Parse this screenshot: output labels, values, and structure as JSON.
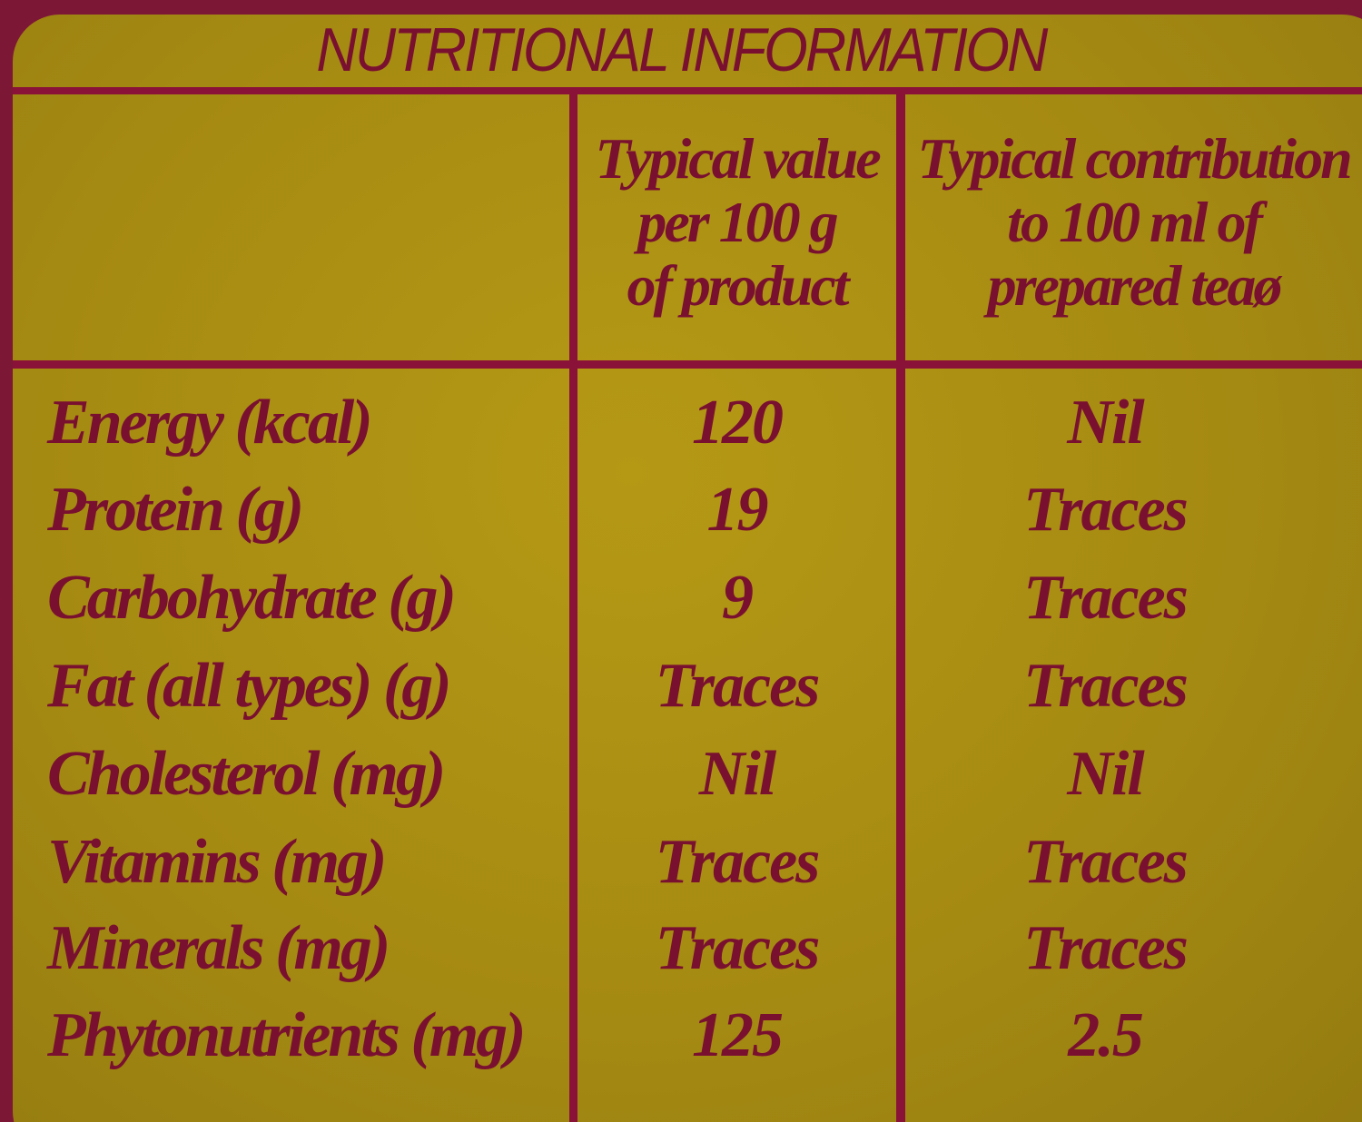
{
  "title": "NUTRITIONAL INFORMATION",
  "columns": {
    "col1": [
      "Typical value",
      "per 100 g",
      "of product"
    ],
    "col2": [
      "Typical contribution",
      "to 100 ml of",
      "prepared teaø"
    ]
  },
  "rows": [
    {
      "label": "Energy (kcal)",
      "per100g": "120",
      "per100ml": "Nil"
    },
    {
      "label": "Protein (g)",
      "per100g": "19",
      "per100ml": "Traces"
    },
    {
      "label": "Carbohydrate (g)",
      "per100g": "9",
      "per100ml": "Traces"
    },
    {
      "label": "Fat (all types) (g)",
      "per100g": "Traces",
      "per100ml": "Traces"
    },
    {
      "label": "Cholesterol (mg)",
      "per100g": "Nil",
      "per100ml": "Nil"
    },
    {
      "label": "Vitamins (mg)",
      "per100g": "Traces",
      "per100ml": "Traces"
    },
    {
      "label": "Minerals (mg)",
      "per100g": "Traces",
      "per100ml": "Traces"
    },
    {
      "label": "Phytonutrients (mg)",
      "per100g": "125",
      "per100ml": "2.5"
    }
  ],
  "colors": {
    "ink": "#7a1030",
    "panel": "#a58a12",
    "border": "#8a1238"
  }
}
